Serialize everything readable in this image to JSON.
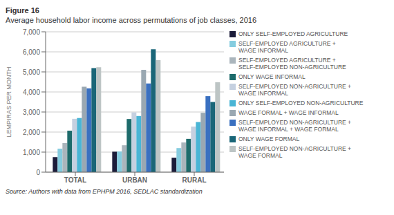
{
  "chart_data": {
    "type": "bar",
    "title": "Average household labor income across permutations of job classes, 2016",
    "annotations": [
      "Figure 16",
      "Source: Authors with data from EPHPM 2016, SEDLAC standardization"
    ],
    "ylabel": "LEMPIRAS PER MONTH",
    "categories": [
      "TOTAL",
      "URBAN",
      "RURAL"
    ],
    "ylim": [
      0,
      7000
    ],
    "yticks": [
      0,
      {
        "value": 1000,
        "label": "1,000"
      },
      {
        "value": 2000,
        "label": "2,000"
      },
      {
        "value": 3000,
        "label": "3,000"
      },
      {
        "value": 4000,
        "label": "4,000"
      },
      {
        "value": 5000,
        "label": "5,000"
      },
      {
        "value": 6000,
        "label": "6,000"
      },
      {
        "value": 7000,
        "label": "7,000"
      }
    ],
    "grid": true,
    "legend": "right",
    "series": [
      {
        "name": "ONLY SELF-EMPLOYED AGRICULTURE",
        "color": "#1c1c3a",
        "values": [
          750,
          1020,
          720
        ]
      },
      {
        "name": "SELF-EMPLOYED AGRICULTURE +\nWAGE INFORMAL",
        "color": "#85ccdf",
        "values": [
          1170,
          1030,
          1200
        ]
      },
      {
        "name": "SELF-EMPLOYED AGRICULTURE +\nSELF-EMPLOYED NON-AGRICULTURE",
        "color": "#aab5bc",
        "values": [
          1450,
          1340,
          1480
        ]
      },
      {
        "name": "ONLY WAGE INFORMAL",
        "color": "#1d6b6b",
        "values": [
          2070,
          2650,
          1660
        ]
      },
      {
        "name": "SELF-EMPLOYED NON-AGRICULTURE +\nWAGE INFORMAL",
        "color": "#c5d0e0",
        "values": [
          2660,
          2980,
          2270
        ]
      },
      {
        "name": "ONLY SELF-EMPLOYED NON-AGRICULTURE",
        "color": "#4ab5d5",
        "values": [
          2700,
          2800,
          2500
        ]
      },
      {
        "name": "WAGE FORMAL + WAGE INFORMAL",
        "color": "#9aa8b2",
        "values": [
          4260,
          5100,
          2960
        ]
      },
      {
        "name": "SELF-EMPLOYED NON-AGRICULTURE +\nWAGE INFORMAL + WAGE FORMAL",
        "color": "#3a70c0",
        "values": [
          4180,
          4420,
          3790
        ]
      },
      {
        "name": "ONLY WAGE FORMAL",
        "color": "#1a6678",
        "values": [
          5190,
          6130,
          3500
        ]
      },
      {
        "name": "SELF-EMPLOYED NON-AGRICULTURE +\nWAGE FORMAL",
        "color": "#bdc5c5",
        "values": [
          5230,
          5590,
          4480
        ]
      }
    ]
  }
}
